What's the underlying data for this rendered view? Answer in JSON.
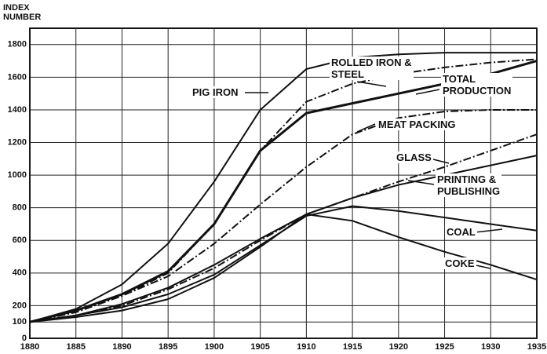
{
  "chart_data": {
    "type": "line",
    "ylabel_lines": [
      "INDEX",
      "NUMBER"
    ],
    "x": [
      1880,
      1885,
      1890,
      1895,
      1900,
      1905,
      1910,
      1915,
      1920,
      1925,
      1930,
      1935
    ],
    "xlim": [
      1880,
      1935
    ],
    "xticks": [
      1880,
      1885,
      1890,
      1895,
      1900,
      1905,
      1910,
      1915,
      1920,
      1925,
      1930,
      1935
    ],
    "ylim": [
      0,
      1900
    ],
    "yticks": [
      0,
      100,
      200,
      400,
      600,
      800,
      1000,
      1200,
      1400,
      1600,
      1800
    ],
    "grid": true,
    "series": [
      {
        "name": "PIG IRON",
        "color": "#111",
        "linestyle": "solid",
        "values": [
          100,
          180,
          330,
          580,
          960,
          1400,
          1650,
          1720,
          1740,
          1750,
          1750,
          1750
        ]
      },
      {
        "name": "ROLLED IRON &\nSTEEL",
        "color": "#111",
        "linestyle": "dashdot",
        "values": [
          100,
          160,
          260,
          400,
          700,
          1150,
          1450,
          1560,
          1620,
          1660,
          1690,
          1710
        ]
      },
      {
        "name": "TOTAL\nPRODUCTION",
        "color": "#111",
        "linestyle": "solid",
        "values": [
          100,
          170,
          270,
          410,
          700,
          1150,
          1380,
          1440,
          1500,
          1560,
          1620,
          1700
        ]
      },
      {
        "name": "MEAT PACKING",
        "color": "#111",
        "linestyle": "dashdot",
        "values": [
          100,
          160,
          260,
          380,
          580,
          820,
          1050,
          1250,
          1350,
          1390,
          1400,
          1400
        ]
      },
      {
        "name": "GLASS",
        "color": "#111",
        "linestyle": "dashdot",
        "values": [
          100,
          140,
          200,
          300,
          430,
          600,
          760,
          860,
          960,
          1050,
          1150,
          1250
        ]
      },
      {
        "name": "PRINTING &\nPUBLISHING",
        "color": "#111",
        "linestyle": "solid",
        "values": [
          100,
          140,
          210,
          310,
          450,
          610,
          760,
          860,
          940,
          1000,
          1060,
          1120
        ]
      },
      {
        "name": "COAL",
        "color": "#111",
        "linestyle": "solid",
        "values": [
          100,
          140,
          190,
          270,
          390,
          570,
          750,
          810,
          780,
          740,
          700,
          660
        ]
      },
      {
        "name": "COKE",
        "color": "#111",
        "linestyle": "solid",
        "values": [
          100,
          130,
          170,
          240,
          370,
          560,
          760,
          720,
          620,
          530,
          450,
          360
        ]
      }
    ]
  }
}
